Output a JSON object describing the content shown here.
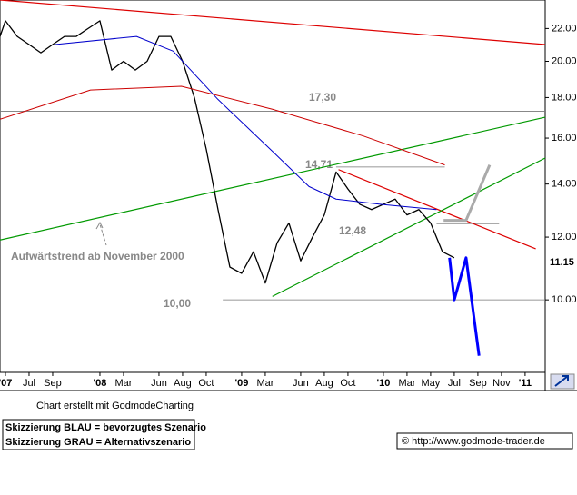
{
  "chart_data": {
    "type": "line",
    "yscale": "log",
    "xlim": [
      3.54,
      49.7
    ],
    "ylim": [
      8.1,
      23.9
    ],
    "yticks": [
      {
        "value": 10,
        "label": "10.00"
      },
      {
        "value": 12,
        "label": "12.00"
      },
      {
        "value": 14,
        "label": "14.00"
      },
      {
        "value": 16,
        "label": "16.00"
      },
      {
        "value": 18,
        "label": "18.00"
      },
      {
        "value": 20,
        "label": "20.00"
      },
      {
        "value": 22,
        "label": "22.00"
      }
    ],
    "xticks": [
      {
        "value": 4,
        "label": "'07"
      },
      {
        "value": 6,
        "label": "Jul"
      },
      {
        "value": 8,
        "label": "Sep"
      },
      {
        "value": 12,
        "label": "'08"
      },
      {
        "value": 14,
        "label": "Mar"
      },
      {
        "value": 17,
        "label": "Jun"
      },
      {
        "value": 19,
        "label": "Aug"
      },
      {
        "value": 21,
        "label": "Oct"
      },
      {
        "value": 24,
        "label": "'09"
      },
      {
        "value": 26,
        "label": "Mar"
      },
      {
        "value": 29,
        "label": "Jun"
      },
      {
        "value": 31,
        "label": "Aug"
      },
      {
        "value": 33,
        "label": "Oct"
      },
      {
        "value": 36,
        "label": "'10"
      },
      {
        "value": 38,
        "label": "Mar"
      },
      {
        "value": 40,
        "label": "May"
      },
      {
        "value": 42,
        "label": "Jul"
      },
      {
        "value": 44,
        "label": "Sep"
      },
      {
        "value": 46,
        "label": "Nov"
      },
      {
        "value": 48,
        "label": "'11"
      }
    ],
    "series": [
      {
        "color": "#000000",
        "width": 1.3,
        "x": [
          3.54,
          4,
          5,
          6,
          7,
          8,
          9,
          10,
          11,
          12,
          13,
          14,
          15,
          16,
          17,
          18,
          19,
          20,
          21,
          22,
          23,
          24,
          25,
          26,
          27,
          28,
          29,
          30,
          31,
          32,
          33,
          34,
          35,
          36,
          37,
          38,
          39,
          40,
          41,
          42
        ],
        "values": [
          21.5,
          22.5,
          21.5,
          21,
          20.5,
          21,
          21.5,
          21.5,
          22,
          22.5,
          19.5,
          20,
          19.5,
          20,
          21.5,
          21.5,
          20,
          18,
          15.5,
          13,
          11,
          10.8,
          11.5,
          10.5,
          11.8,
          12.5,
          11.2,
          12,
          12.8,
          14.5,
          13.8,
          13.2,
          13,
          13.2,
          13.4,
          12.8,
          13,
          12.5,
          11.5,
          11.3
        ]
      },
      {
        "color": "#0000cc",
        "width": 1,
        "x": [
          8.2,
          15.1,
          18.2,
          22,
          26.6,
          29.7,
          32,
          35.8,
          40.5
        ],
        "values": [
          21,
          21.5,
          20.6,
          17.9,
          15.4,
          13.9,
          13.4,
          13.2,
          13
        ]
      },
      {
        "color": "#cc0000",
        "width": 1,
        "x": [
          3.54,
          11.2,
          18.9,
          26.6,
          34.3,
          41.2
        ],
        "values": [
          16.9,
          18.4,
          18.6,
          17.4,
          16.1,
          14.8
        ]
      },
      {
        "color": "#0000ff",
        "width": 3,
        "x": [
          41.6,
          42,
          43,
          44.1
        ],
        "values": [
          11.3,
          10,
          11.3,
          8.5
        ]
      },
      {
        "color": "#aaaaaa",
        "width": 3,
        "x": [
          41.1,
          43,
          45
        ],
        "values": [
          12.6,
          12.6,
          14.8
        ]
      }
    ],
    "trendlines": [
      {
        "color": "#dd0000",
        "x": [
          3.54,
          49.7
        ],
        "values": [
          23.9,
          21
        ]
      },
      {
        "color": "#dd0000",
        "x": [
          32.2,
          48.9
        ],
        "values": [
          14.6,
          11.6
        ]
      },
      {
        "color": "#009900",
        "x": [
          3.54,
          49.7
        ],
        "values": [
          11.9,
          17
        ]
      },
      {
        "color": "#009900",
        "x": [
          26.6,
          49.7
        ],
        "values": [
          10.1,
          15.1
        ]
      }
    ],
    "levels": [
      {
        "value": 17.3,
        "label": "17,30",
        "x": [
          3.54,
          49.7
        ]
      },
      {
        "value": 14.71,
        "label": "14,71",
        "x": [
          32,
          41.2
        ]
      },
      {
        "value": 12.48,
        "label": "12,48",
        "x": [
          40.5,
          45.8
        ]
      },
      {
        "value": 10,
        "label": "10,00",
        "x": [
          22.4,
          49.7
        ]
      }
    ],
    "last_price": {
      "value": 11.15,
      "label": "11.15"
    },
    "annotation": "Aufwärtstrend ab November 2000"
  },
  "footer": {
    "credit": "Chart erstellt mit GodmodeCharting",
    "notes": [
      "Skizzierung BLAU = bevorzugtes Szenario",
      "Skizzierung GRAU = Alternativszenario"
    ],
    "source": "© http://www.godmode-trader.de"
  }
}
